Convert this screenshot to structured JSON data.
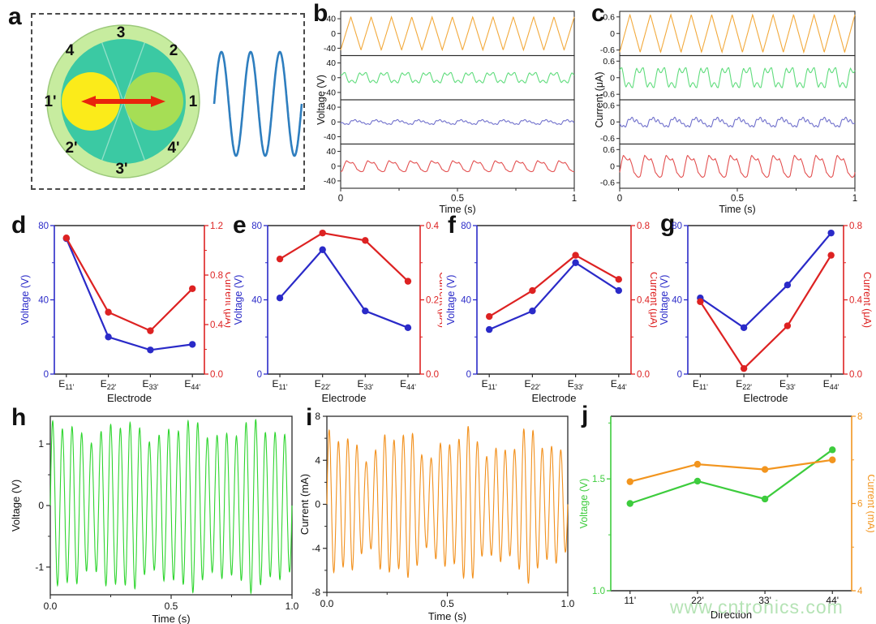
{
  "watermark": "www.cntronics.com",
  "chart_data": [
    {
      "panel": "a",
      "type": "diagram",
      "description": "rotary disc triboelectric nanogenerator schematic with AC sine wave",
      "ring_labels": [
        "3",
        "2",
        "1",
        "4'",
        "3'",
        "2'",
        "1'",
        "4"
      ],
      "colors": {
        "outer_ring": "#C7EC9F",
        "outer_stroke": "#9CC97B",
        "inner_disc": "#3BC9A3",
        "sector_line": "#92E0C8",
        "left_circle": "#FBEB1A",
        "right_circle": "#A6DE55",
        "arrow": "#E8240C",
        "sine_wave": "#2E7EBF"
      }
    },
    {
      "panel": "b",
      "type": "line",
      "subtype": "stacked_waveforms",
      "ylabel": "Voltage (V)",
      "xlabel": "Time (s)",
      "xlim": [
        0,
        1
      ],
      "xticks": [
        0,
        0.5,
        1
      ],
      "xtick_labels": [
        "0",
        "0.5",
        "1"
      ],
      "row_ylim": [
        -60,
        60
      ],
      "row_yticks": [
        40,
        0,
        -40
      ],
      "row_ytick_labels": [
        "40",
        "0",
        "-40"
      ],
      "series": [
        {
          "name": "orange-trace",
          "color": "#F2A93B",
          "shape": "triangle",
          "amplitude": 45,
          "cycles": 11.5,
          "phase": 0
        },
        {
          "name": "green-trace",
          "color": "#5FDC7C",
          "shape": "square_ripple",
          "amplitude": 14,
          "cycles": 11,
          "phase": 0.2
        },
        {
          "name": "blue-trace",
          "color": "#7070CC",
          "shape": "irregular",
          "amplitude": 9,
          "cycles": 11,
          "phase": 0.5
        },
        {
          "name": "red-trace",
          "color": "#E35050",
          "shape": "square_ripple2",
          "amplitude": 15,
          "cycles": 11,
          "phase": 0.8
        }
      ]
    },
    {
      "panel": "c",
      "type": "line",
      "subtype": "stacked_waveforms",
      "ylabel": "Current (μA)",
      "xlabel": "Time (s)",
      "xlim": [
        0,
        1
      ],
      "xticks": [
        0,
        0.5,
        1
      ],
      "xtick_labels": [
        "0",
        "0.5",
        "1"
      ],
      "row_ylim": [
        -0.8,
        0.8
      ],
      "row_yticks": [
        0.6,
        0,
        -0.6
      ],
      "row_ytick_labels": [
        "0.6",
        "0",
        "-0.6"
      ],
      "series": [
        {
          "name": "orange-trace",
          "color": "#F2A93B",
          "shape": "triangle",
          "amplitude": 0.68,
          "cycles": 11.5,
          "phase": 0
        },
        {
          "name": "green-trace",
          "color": "#5FDC7C",
          "shape": "square_ripple",
          "amplitude": 0.36,
          "cycles": 11,
          "phase": 0.3
        },
        {
          "name": "blue-trace",
          "color": "#7070CC",
          "shape": "irregular",
          "amplitude": 0.24,
          "cycles": 11,
          "phase": 0.6
        },
        {
          "name": "red-trace",
          "color": "#E35050",
          "shape": "square_ripple2",
          "amplitude": 0.4,
          "cycles": 11,
          "phase": 0.9
        }
      ]
    },
    {
      "panel": "d",
      "type": "line",
      "subtype": "dual_axis_categorical",
      "xlabel": "Electrode",
      "category_prefix": "E",
      "categories": [
        "11'",
        "22'",
        "33'",
        "44'"
      ],
      "left": {
        "label": "Voltage (V)",
        "color": "#2A2AC8",
        "ylim": [
          0,
          80
        ],
        "ticks": [
          0,
          40,
          80
        ],
        "tick_labels": [
          "0",
          "40",
          "80"
        ],
        "values": [
          73,
          20,
          13,
          16
        ]
      },
      "right": {
        "label": "Current (μA)",
        "color": "#DD2222",
        "ylim": [
          0,
          1.2
        ],
        "ticks": [
          0,
          0.4,
          0.8,
          1.2
        ],
        "tick_labels": [
          "0.0",
          "0.4",
          "0.8",
          "1.2"
        ],
        "values": [
          1.1,
          0.5,
          0.35,
          0.69
        ]
      }
    },
    {
      "panel": "e",
      "type": "line",
      "subtype": "dual_axis_categorical",
      "xlabel": "Electrode",
      "category_prefix": "E",
      "categories": [
        "11'",
        "22'",
        "33'",
        "44'"
      ],
      "left": {
        "label": "Voltage (V)",
        "color": "#2A2AC8",
        "ylim": [
          0,
          80
        ],
        "ticks": [
          0,
          40,
          80
        ],
        "tick_labels": [
          "0",
          "40",
          "80"
        ],
        "values": [
          41,
          67,
          34,
          25
        ]
      },
      "right": {
        "label": "Current (μA)",
        "color": "#DD2222",
        "ylim": [
          0,
          0.4
        ],
        "ticks": [
          0,
          0.2,
          0.4
        ],
        "tick_labels": [
          "0.0",
          "0.2",
          "0.4"
        ],
        "values": [
          0.31,
          0.38,
          0.36,
          0.25
        ]
      }
    },
    {
      "panel": "f",
      "type": "line",
      "subtype": "dual_axis_categorical",
      "xlabel": "Electrode",
      "category_prefix": "E",
      "categories": [
        "11'",
        "22'",
        "33'",
        "44'"
      ],
      "left": {
        "label": "Voltage (V)",
        "color": "#2A2AC8",
        "ylim": [
          0,
          80
        ],
        "ticks": [
          0,
          40,
          80
        ],
        "tick_labels": [
          "0",
          "40",
          "80"
        ],
        "values": [
          24,
          34,
          60,
          45
        ]
      },
      "right": {
        "label": "Current (μA)",
        "color": "#DD2222",
        "ylim": [
          0,
          0.8
        ],
        "ticks": [
          0,
          0.4,
          0.8
        ],
        "tick_labels": [
          "0.0",
          "0.4",
          "0.8"
        ],
        "values": [
          0.31,
          0.45,
          0.64,
          0.51
        ]
      }
    },
    {
      "panel": "g",
      "type": "line",
      "subtype": "dual_axis_categorical",
      "xlabel": "Electrode",
      "category_prefix": "E",
      "categories": [
        "11'",
        "22'",
        "33'",
        "44'"
      ],
      "left": {
        "label": "Voltage (V)",
        "color": "#2A2AC8",
        "ylim": [
          0,
          80
        ],
        "ticks": [
          0,
          40,
          80
        ],
        "tick_labels": [
          "0",
          "40",
          "80"
        ],
        "values": [
          41,
          25,
          48,
          76
        ]
      },
      "right": {
        "label": "Current (μA)",
        "color": "#DD2222",
        "ylim": [
          0,
          0.8
        ],
        "ticks": [
          0,
          0.4,
          0.8
        ],
        "tick_labels": [
          "0.0",
          "0.4",
          "0.8"
        ],
        "values": [
          0.39,
          0.03,
          0.26,
          0.64
        ]
      }
    },
    {
      "panel": "h",
      "type": "line",
      "subtype": "dense_waveform",
      "ylabel": "Voltage (V)",
      "xlabel": "Time (s)",
      "color": "#2ED52E",
      "ylim": [
        -1.45,
        1.45
      ],
      "yticks": [
        -1,
        0,
        1
      ],
      "ytick_labels": [
        "-1",
        "0",
        "1"
      ],
      "xlim": [
        0,
        1
      ],
      "xticks": [
        0,
        0.5,
        1
      ],
      "xtick_labels": [
        "0.0",
        "0.5",
        "1.0"
      ],
      "amplitude": 1.22,
      "amplitude_jitter": 0.1,
      "cycles": 25
    },
    {
      "panel": "i",
      "type": "line",
      "subtype": "dense_waveform",
      "ylabel": "Current (mA)",
      "xlabel": "Time (s)",
      "color": "#F2901C",
      "ylim": [
        -8,
        8
      ],
      "yticks": [
        -8,
        -4,
        0,
        4,
        8
      ],
      "ytick_labels": [
        "-8",
        "-4",
        "0",
        "4",
        "8"
      ],
      "xlim": [
        0,
        1
      ],
      "xticks": [
        0,
        0.5,
        1
      ],
      "xtick_labels": [
        "0.0",
        "0.5",
        "1.0"
      ],
      "amplitude": 5.5,
      "amplitude_jitter": 0.18,
      "cycles": 26
    },
    {
      "panel": "j",
      "type": "line",
      "subtype": "dual_axis_categorical",
      "xlabel": "Direction",
      "category_prefix": "",
      "categories": [
        "11'",
        "22'",
        "33'",
        "44'"
      ],
      "left": {
        "label": "Voltage (V)",
        "color": "#3DCC3D",
        "ylim": [
          1.0,
          1.78
        ],
        "ticks": [
          1.0,
          1.5
        ],
        "tick_labels": [
          "1.0",
          "1.5"
        ],
        "minor_ticks": [
          1.25,
          1.75
        ],
        "values": [
          1.39,
          1.49,
          1.41,
          1.63
        ]
      },
      "right": {
        "label": "Current (mA)",
        "color": "#F2951F",
        "ylim": [
          4,
          8
        ],
        "ticks": [
          4,
          6,
          8
        ],
        "tick_labels": [
          "4",
          "6",
          "8"
        ],
        "minor_ticks": [
          5,
          7
        ],
        "values": [
          6.5,
          6.9,
          6.78,
          7.0
        ]
      }
    }
  ]
}
